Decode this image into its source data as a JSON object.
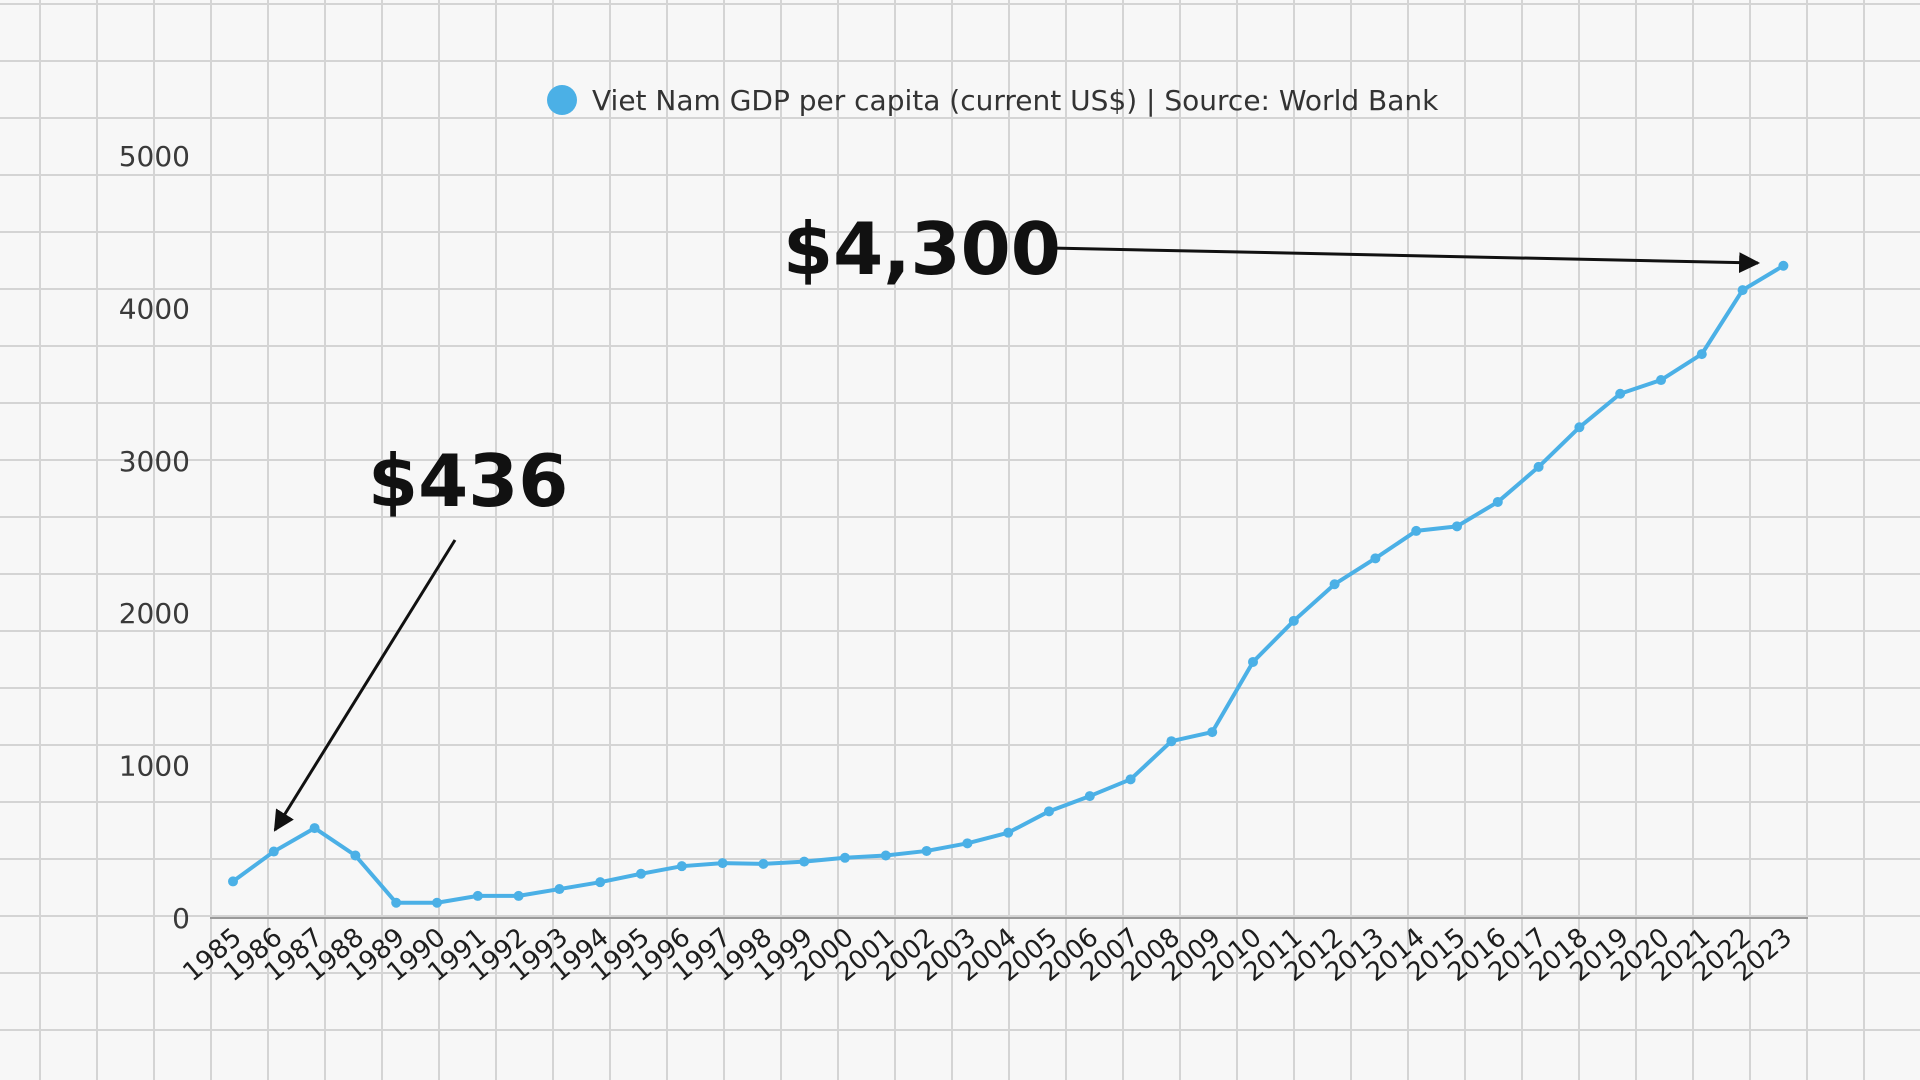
{
  "chart_data": {
    "type": "line",
    "legend": "Viet Nam GDP per capita (current US$) | Source: World Bank",
    "legend_position": "top-center",
    "x": [
      "1985",
      "1986",
      "1987",
      "1988",
      "1989",
      "1990",
      "1991",
      "1992",
      "1993",
      "1994",
      "1995",
      "1996",
      "1997",
      "1998",
      "1999",
      "2000",
      "2001",
      "2002",
      "2003",
      "2004",
      "2005",
      "2006",
      "2007",
      "2008",
      "2009",
      "2010",
      "2011",
      "2012",
      "2013",
      "2014",
      "2015",
      "2016",
      "2017",
      "2018",
      "2019",
      "2020",
      "2021",
      "2022",
      "2023"
    ],
    "series": [
      {
        "name": "Viet Nam GDP per capita (current US$) | Source: World Bank",
        "values": [
          240,
          436,
          590,
          410,
          100,
          100,
          145,
          145,
          190,
          235,
          290,
          340,
          360,
          355,
          370,
          395,
          410,
          440,
          490,
          560,
          700,
          800,
          910,
          1160,
          1220,
          1680,
          1950,
          2190,
          2360,
          2540,
          2570,
          2730,
          2960,
          3220,
          3440,
          3530,
          3700,
          4120,
          4280
        ]
      }
    ],
    "y_ticks": [
      "0",
      "1000",
      "2000",
      "3000",
      "4000",
      "5000"
    ],
    "ylim": [
      0,
      5000
    ],
    "grid": true,
    "annotations": [
      {
        "text": "$436",
        "x": "1986"
      },
      {
        "text": "$4,300",
        "x": "2022"
      }
    ]
  },
  "colors": {
    "series": "#4bb0e6",
    "background": "#f7f7f7",
    "grid": "#d4d4d4",
    "annotation": "#111111"
  }
}
